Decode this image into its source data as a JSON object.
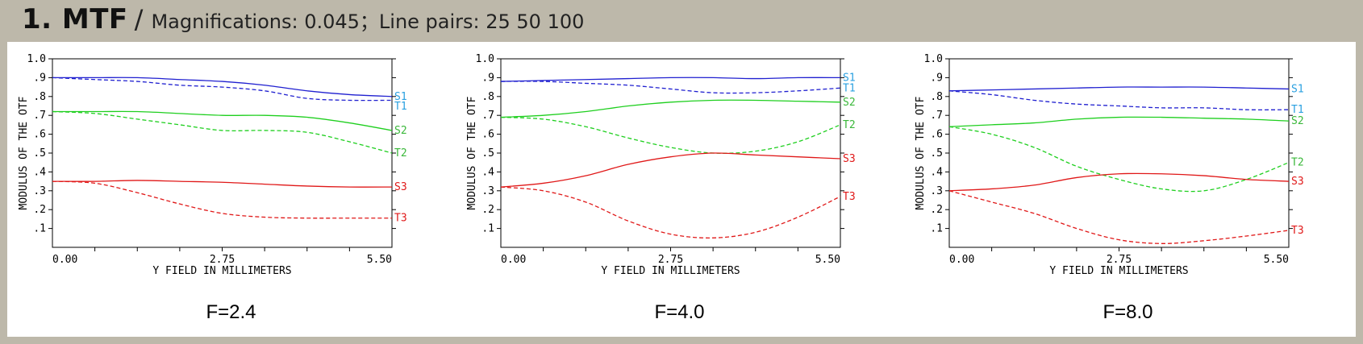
{
  "header": {
    "title": "1. MTF",
    "separator": "/",
    "magnifications": "Magnifications: 0.045；",
    "line_pairs": "Line pairs: 25 50 100"
  },
  "colors": {
    "background": "#bdb8aa",
    "panel": "#ffffff",
    "axis": "#000000",
    "S1": "#2020d0",
    "T1": "#2020d0",
    "S2": "#1fcf1f",
    "T2": "#1fcf1f",
    "S3": "#e01818",
    "T3": "#e01818",
    "label_1": "#2aa0e0",
    "label_2": "#3ab83a",
    "label_3": "#e01818"
  },
  "chart_data": [
    {
      "type": "line",
      "title": "F=2.4",
      "xlabel": "Y FIELD IN MILLIMETERS",
      "ylabel": "MODULUS OF THE OTF",
      "xlim": [
        0,
        5.5
      ],
      "ylim": [
        0,
        1.0
      ],
      "x_ticks": [
        "0.00",
        "2.75",
        "5.50"
      ],
      "y_ticks": [
        ".1",
        ".2",
        ".3",
        ".4",
        ".5",
        ".6",
        ".7",
        ".8",
        ".9",
        "1.0"
      ],
      "x": [
        0,
        0.6875,
        1.375,
        2.0625,
        2.75,
        3.4375,
        4.125,
        4.8125,
        5.5
      ],
      "series": [
        {
          "name": "S1",
          "style": "solid",
          "values": [
            0.9,
            0.9,
            0.9,
            0.89,
            0.88,
            0.86,
            0.83,
            0.81,
            0.8
          ]
        },
        {
          "name": "T1",
          "style": "dashed",
          "values": [
            0.9,
            0.89,
            0.88,
            0.86,
            0.85,
            0.83,
            0.79,
            0.78,
            0.78
          ]
        },
        {
          "name": "S2",
          "style": "solid",
          "values": [
            0.72,
            0.72,
            0.72,
            0.71,
            0.7,
            0.7,
            0.69,
            0.66,
            0.62
          ]
        },
        {
          "name": "T2",
          "style": "dashed",
          "values": [
            0.72,
            0.71,
            0.68,
            0.65,
            0.62,
            0.62,
            0.61,
            0.56,
            0.5
          ]
        },
        {
          "name": "S3",
          "style": "solid",
          "values": [
            0.35,
            0.35,
            0.355,
            0.35,
            0.345,
            0.335,
            0.325,
            0.32,
            0.32
          ]
        },
        {
          "name": "T3",
          "style": "dashed",
          "values": [
            0.35,
            0.34,
            0.29,
            0.23,
            0.18,
            0.16,
            0.155,
            0.155,
            0.155
          ]
        }
      ],
      "legend": [
        "S1",
        "T1",
        "S2",
        "T2",
        "S3",
        "T3"
      ]
    },
    {
      "type": "line",
      "title": "F=4.0",
      "xlabel": "Y FIELD IN MILLIMETERS",
      "ylabel": "MODULUS OF THE OTF",
      "xlim": [
        0,
        5.5
      ],
      "ylim": [
        0,
        1.0
      ],
      "x_ticks": [
        "0.00",
        "2.75",
        "5.50"
      ],
      "y_ticks": [
        ".1",
        ".2",
        ".3",
        ".4",
        ".5",
        ".6",
        ".7",
        ".8",
        ".9",
        "1.0"
      ],
      "x": [
        0,
        0.6875,
        1.375,
        2.0625,
        2.75,
        3.4375,
        4.125,
        4.8125,
        5.5
      ],
      "series": [
        {
          "name": "S1",
          "style": "solid",
          "values": [
            0.88,
            0.885,
            0.89,
            0.895,
            0.9,
            0.9,
            0.895,
            0.9,
            0.9
          ]
        },
        {
          "name": "T1",
          "style": "dashed",
          "values": [
            0.88,
            0.88,
            0.87,
            0.86,
            0.84,
            0.82,
            0.82,
            0.83,
            0.845
          ]
        },
        {
          "name": "S2",
          "style": "solid",
          "values": [
            0.69,
            0.7,
            0.72,
            0.75,
            0.77,
            0.78,
            0.78,
            0.775,
            0.77
          ]
        },
        {
          "name": "T2",
          "style": "dashed",
          "values": [
            0.69,
            0.68,
            0.64,
            0.58,
            0.53,
            0.5,
            0.51,
            0.56,
            0.65
          ]
        },
        {
          "name": "S3",
          "style": "solid",
          "values": [
            0.32,
            0.34,
            0.38,
            0.44,
            0.48,
            0.5,
            0.49,
            0.48,
            0.47
          ]
        },
        {
          "name": "T3",
          "style": "dashed",
          "values": [
            0.32,
            0.3,
            0.24,
            0.14,
            0.07,
            0.05,
            0.08,
            0.16,
            0.27
          ]
        }
      ],
      "legend": [
        "S1",
        "T1",
        "S2",
        "T2",
        "S3",
        "T3"
      ]
    },
    {
      "type": "line",
      "title": "F=8.0",
      "xlabel": "Y FIELD IN MILLIMETERS",
      "ylabel": "MODULUS OF THE OTF",
      "xlim": [
        0,
        5.5
      ],
      "ylim": [
        0,
        1.0
      ],
      "x_ticks": [
        "0.00",
        "2.75",
        "5.50"
      ],
      "y_ticks": [
        ".1",
        ".2",
        ".3",
        ".4",
        ".5",
        ".6",
        ".7",
        ".8",
        ".9",
        "1.0"
      ],
      "x": [
        0,
        0.6875,
        1.375,
        2.0625,
        2.75,
        3.4375,
        4.125,
        4.8125,
        5.5
      ],
      "series": [
        {
          "name": "S1",
          "style": "solid",
          "values": [
            0.83,
            0.835,
            0.84,
            0.845,
            0.85,
            0.85,
            0.85,
            0.845,
            0.84
          ]
        },
        {
          "name": "T1",
          "style": "dashed",
          "values": [
            0.83,
            0.81,
            0.78,
            0.76,
            0.75,
            0.74,
            0.74,
            0.73,
            0.73
          ]
        },
        {
          "name": "S2",
          "style": "solid",
          "values": [
            0.64,
            0.65,
            0.66,
            0.68,
            0.69,
            0.69,
            0.685,
            0.68,
            0.67
          ]
        },
        {
          "name": "T2",
          "style": "dashed",
          "values": [
            0.64,
            0.6,
            0.53,
            0.43,
            0.36,
            0.31,
            0.3,
            0.36,
            0.45
          ]
        },
        {
          "name": "S3",
          "style": "solid",
          "values": [
            0.3,
            0.31,
            0.33,
            0.37,
            0.39,
            0.39,
            0.38,
            0.36,
            0.35
          ]
        },
        {
          "name": "T3",
          "style": "dashed",
          "values": [
            0.3,
            0.24,
            0.18,
            0.1,
            0.04,
            0.02,
            0.035,
            0.06,
            0.09
          ]
        }
      ],
      "legend": [
        "S1",
        "T1",
        "S2",
        "T2",
        "S3",
        "T3"
      ]
    }
  ]
}
